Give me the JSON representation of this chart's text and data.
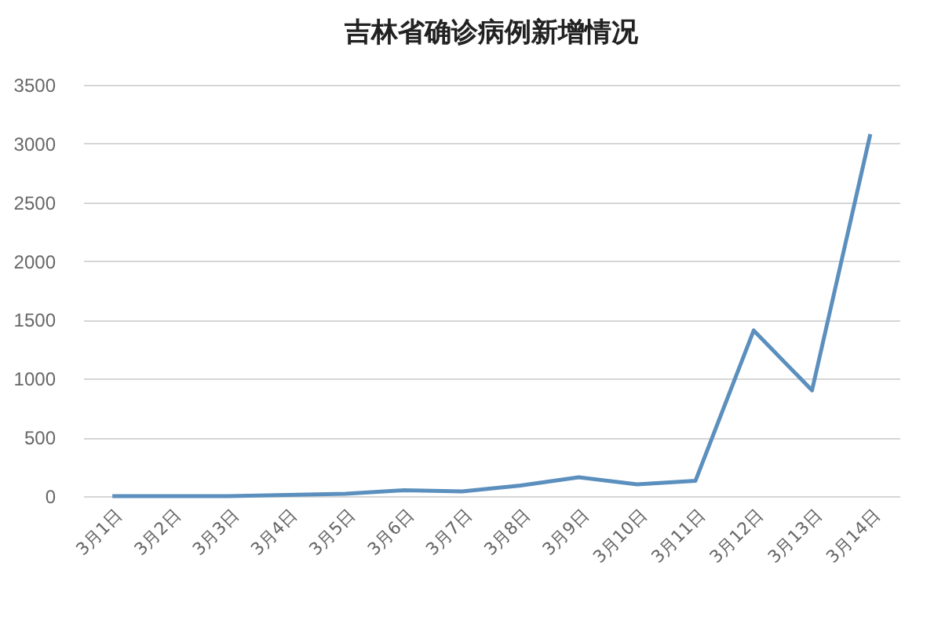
{
  "chart_data": {
    "type": "line",
    "title": "吉林省确诊病例新增情况",
    "categories": [
      "3月1日",
      "3月2日",
      "3月3日",
      "3月4日",
      "3月5日",
      "3月6日",
      "3月7日",
      "3月8日",
      "3月9日",
      "3月10日",
      "3月11日",
      "3月12日",
      "3月13日",
      "3月14日"
    ],
    "series": [
      {
        "color": "#5b8fbd",
        "values": [
          0,
          0,
          0,
          10,
          20,
          50,
          40,
          90,
          160,
          100,
          130,
          1410,
          900,
          3080
        ]
      }
    ],
    "ylim": [
      0,
      3500
    ],
    "yticks": [
      0,
      500,
      1000,
      1500,
      2000,
      2500,
      3000,
      3500
    ],
    "grid": "y",
    "legend": false,
    "marker": "none",
    "line_style": "solid"
  }
}
